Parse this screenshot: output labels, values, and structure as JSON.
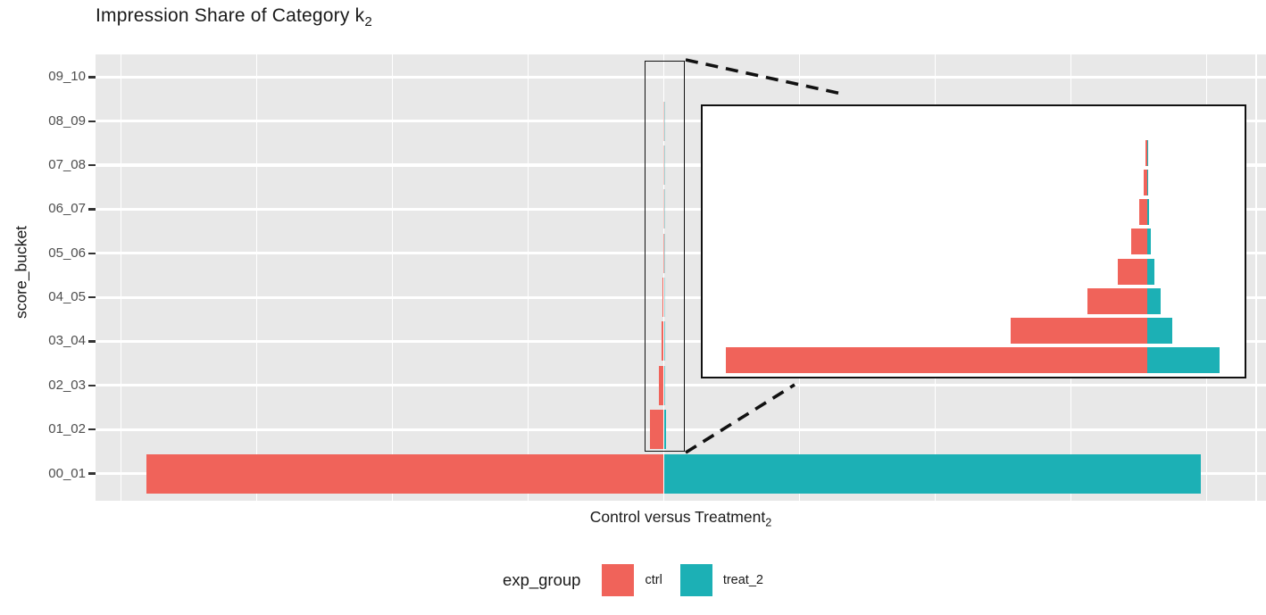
{
  "title": {
    "text": "Impression Share of Category k",
    "subscript": "2"
  },
  "axes": {
    "y_label": "score_bucket",
    "x_label": "Control versus Treatment",
    "x_label_subscript": "2",
    "x_tick_labels_shown": false
  },
  "colors": {
    "ctrl": "#F0635A",
    "treat_2": "#1CB0B5",
    "panel_background": "#E8E8E8",
    "gridline": "#FFFFFF",
    "tick_label": "#4D4D4D",
    "zoom_annotation": "#111111"
  },
  "legend": {
    "title": "exp_group",
    "items": [
      {
        "label": "ctrl",
        "color": "#F0635A"
      },
      {
        "label": "treat_2",
        "color": "#1CB0B5"
      }
    ],
    "position": "bottom"
  },
  "chart_data": {
    "type": "bar",
    "orientation": "horizontal-diverging",
    "title": "Impression Share of Category k_2",
    "xlabel": "Control versus Treatment_2",
    "ylabel": "score_bucket",
    "categories": [
      "00_01",
      "01_02",
      "02_03",
      "03_04",
      "04_05",
      "05_06",
      "06_07",
      "07_08",
      "08_09",
      "09_10"
    ],
    "series": [
      {
        "name": "ctrl",
        "direction": "left",
        "color": "#F0635A",
        "values": [
          0.381,
          0.0105,
          0.0034,
          0.0015,
          0.00073,
          0.0004,
          0.0002,
          8e-05,
          4e-05,
          0
        ]
      },
      {
        "name": "treat_2",
        "direction": "right",
        "color": "#1CB0B5",
        "values": [
          0.396,
          0.0018,
          0.00062,
          0.00033,
          0.00017,
          9e-05,
          5e-05,
          2e-05,
          1e-05,
          0
        ]
      }
    ],
    "x_axis": {
      "range": [
        -0.419,
        0.444
      ],
      "gridline_spacing_units": 0.1,
      "labels_shown": false
    },
    "grid": true,
    "legend_position": "bottom",
    "zoom_inset": {
      "magnified_buckets": [
        "01_02",
        "02_03",
        "03_04",
        "04_05",
        "05_06",
        "06_07",
        "07_08",
        "08_09"
      ],
      "magnification": 29.6
    }
  }
}
